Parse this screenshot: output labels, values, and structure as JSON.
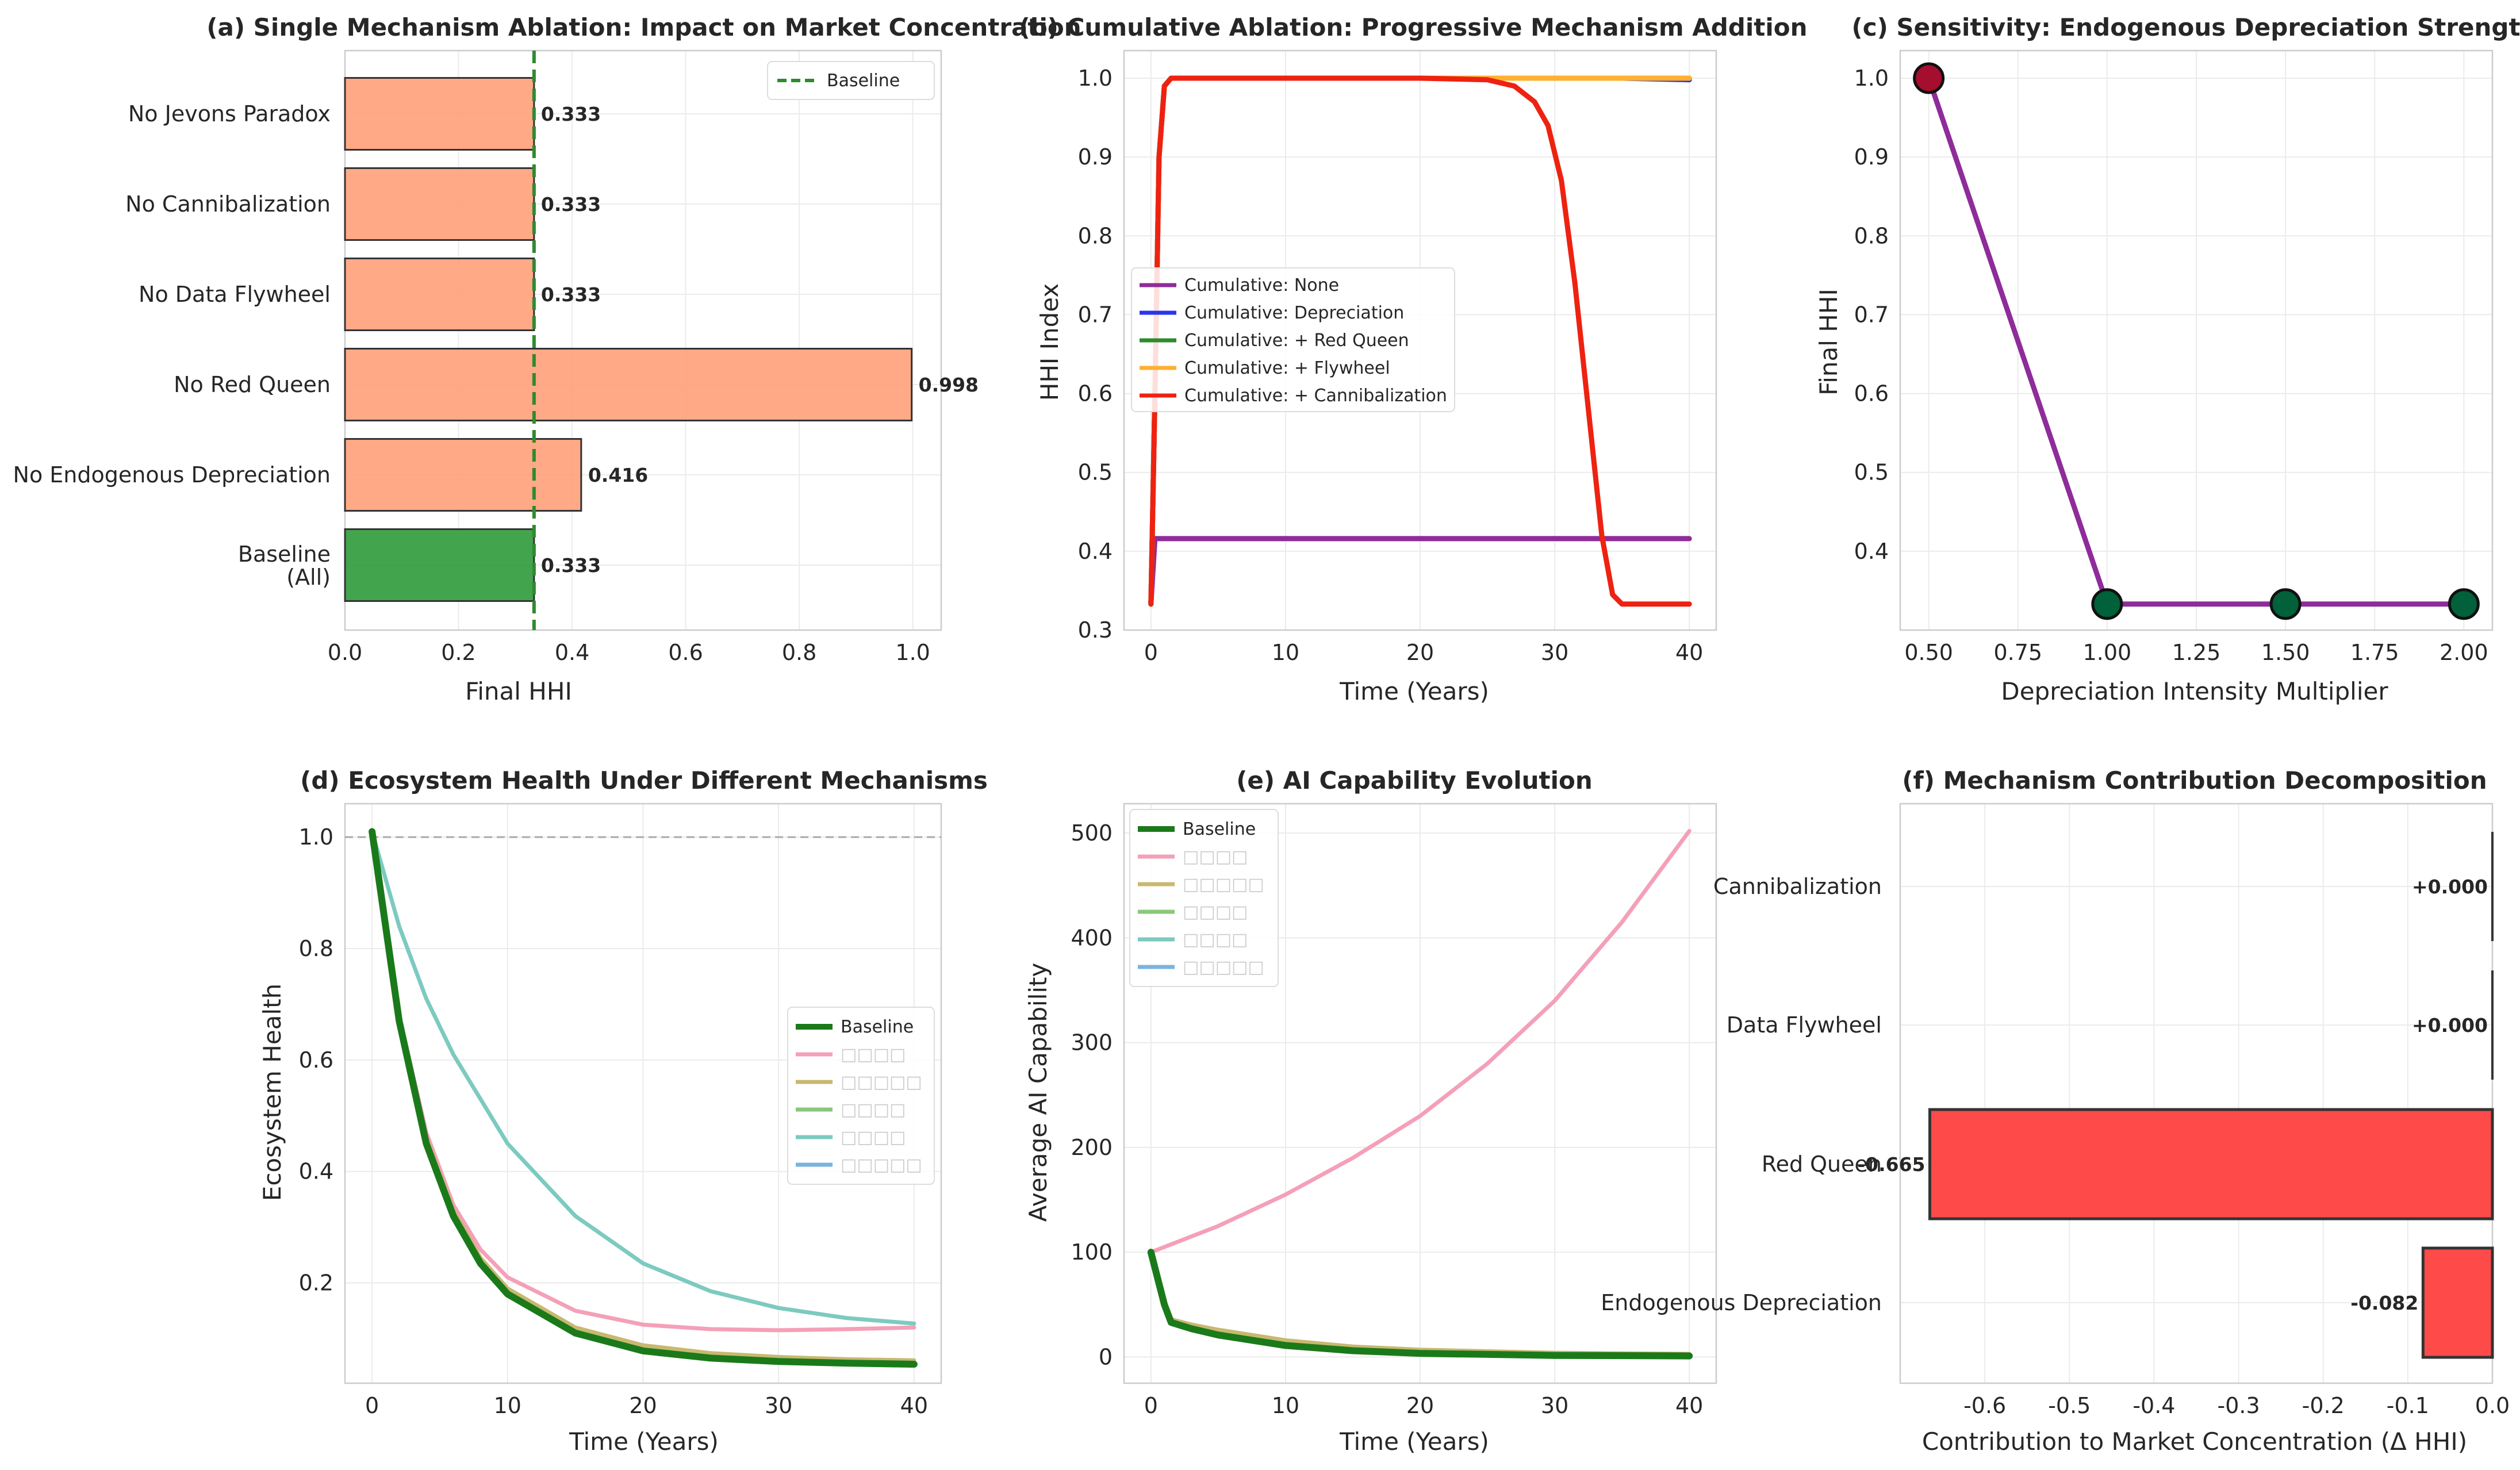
{
  "chart_data": [
    {
      "id": "a",
      "type": "bar",
      "orientation": "horizontal",
      "title": "(a) Single Mechanism Ablation: Impact on Market Concentration",
      "xlabel": "Final HHI",
      "ylabel": "",
      "xlim": [
        0,
        1.05
      ],
      "xticks": [
        "0.0",
        "0.2",
        "0.4",
        "0.6",
        "0.8",
        "1.0"
      ],
      "categories": [
        "Baseline\n(All)",
        "No Endogenous Depreciation",
        "No Red Queen",
        "No Data Flywheel",
        "No Cannibalization",
        "No Jevons Paradox"
      ],
      "values": [
        0.333,
        0.416,
        0.998,
        0.333,
        0.333,
        0.333
      ],
      "value_labels": [
        "0.333",
        "0.416",
        "0.998",
        "0.333",
        "0.333",
        "0.333"
      ],
      "bar_colors": [
        "#2e9a3a",
        "#ffa07a",
        "#ffa07a",
        "#ffa07a",
        "#ffa07a",
        "#ffa07a"
      ],
      "baseline_value": 0.333,
      "legend": [
        "Baseline"
      ],
      "legend_position": "top-right",
      "grid": true
    },
    {
      "id": "b",
      "type": "line",
      "title": "(b) Cumulative Ablation: Progressive Mechanism Addition",
      "xlabel": "Time (Years)",
      "ylabel": "HHI Index",
      "xlim": [
        -2,
        42
      ],
      "ylim": [
        0.3,
        1.035
      ],
      "xticks": [
        "0",
        "10",
        "20",
        "30",
        "40"
      ],
      "yticks": [
        "0.3",
        "0.4",
        "0.5",
        "0.6",
        "0.7",
        "0.8",
        "0.9",
        "1.0"
      ],
      "series": [
        {
          "name": "Cumulative: None",
          "color": "#8e2c9a",
          "x": [
            0,
            0.3,
            1,
            40
          ],
          "values": [
            0.333,
            0.416,
            0.416,
            0.416
          ]
        },
        {
          "name": "Cumulative: Depreciation",
          "color": "#2a35ee",
          "x": [
            0,
            0.3,
            0.6,
            1,
            1.5,
            5,
            20,
            35,
            40
          ],
          "values": [
            0.333,
            0.6,
            0.9,
            0.99,
            1.0,
            1.0,
            1.0,
            1.0,
            0.998
          ]
        },
        {
          "name": "Cumulative: + Red Queen",
          "color": "#2e8b2e",
          "x": [
            0,
            0.3,
            0.6,
            1,
            1.5,
            40
          ],
          "values": [
            0.333,
            0.6,
            0.9,
            0.99,
            1.0,
            1.0
          ]
        },
        {
          "name": "Cumulative: + Flywheel",
          "color": "#ffb030",
          "x": [
            0,
            0.3,
            0.6,
            1,
            1.5,
            40
          ],
          "values": [
            0.333,
            0.6,
            0.9,
            0.99,
            1.0,
            1.0
          ]
        },
        {
          "name": "Cumulative: + Cannibalization",
          "color": "#ee2211",
          "x": [
            0,
            0.3,
            0.6,
            1,
            1.5,
            20,
            25,
            27,
            28.5,
            29.5,
            30.5,
            31.5,
            32.5,
            33.5,
            34.3,
            35,
            40
          ],
          "values": [
            0.333,
            0.6,
            0.9,
            0.99,
            1.0,
            1.0,
            0.998,
            0.99,
            0.97,
            0.94,
            0.87,
            0.74,
            0.58,
            0.42,
            0.345,
            0.333,
            0.333
          ]
        }
      ],
      "legend_position": "center-left",
      "grid": true
    },
    {
      "id": "c",
      "type": "line",
      "title": "(c) Sensitivity: Endogenous Depreciation Strength",
      "xlabel": "Depreciation Intensity Multiplier",
      "ylabel": "Final HHI",
      "xlim": [
        0.42,
        2.08
      ],
      "ylim": [
        0.3,
        1.035
      ],
      "xticks": [
        "0.50",
        "0.75",
        "1.00",
        "1.25",
        "1.50",
        "1.75",
        "2.00"
      ],
      "yticks": [
        "0.4",
        "0.5",
        "0.6",
        "0.7",
        "0.8",
        "0.9",
        "1.0"
      ],
      "x": [
        0.5,
        1.0,
        1.5,
        2.0
      ],
      "values": [
        1.0,
        0.333,
        0.333,
        0.333
      ],
      "line_color": "#8e2c9a",
      "marker_colors": [
        "#a50e2e",
        "#00613a",
        "#00613a",
        "#00613a"
      ],
      "grid": true
    },
    {
      "id": "d",
      "type": "line",
      "title": "(d) Ecosystem Health Under Different Mechanisms",
      "xlabel": "Time (Years)",
      "ylabel": "Ecosystem Health",
      "xlim": [
        -2,
        42
      ],
      "ylim": [
        0.02,
        1.06
      ],
      "xticks": [
        "0",
        "10",
        "20",
        "30",
        "40"
      ],
      "yticks": [
        "0.2",
        "0.4",
        "0.6",
        "0.8",
        "1.0"
      ],
      "reference_line": 1.0,
      "series": [
        {
          "name": "Baseline",
          "color": "#1a7a1a",
          "x": [
            0,
            2,
            4,
            6,
            8,
            10,
            15,
            20,
            25,
            30,
            35,
            40
          ],
          "values": [
            1.01,
            0.67,
            0.45,
            0.32,
            0.235,
            0.18,
            0.11,
            0.078,
            0.065,
            0.059,
            0.056,
            0.054
          ]
        },
        {
          "name": "□□□□",
          "color": "#f4a0b8",
          "x": [
            0,
            2,
            4,
            6,
            8,
            10,
            15,
            20,
            25,
            30,
            35,
            40
          ],
          "values": [
            1.01,
            0.68,
            0.47,
            0.34,
            0.26,
            0.21,
            0.15,
            0.125,
            0.117,
            0.115,
            0.117,
            0.12
          ]
        },
        {
          "name": "□□□□□",
          "color": "#c8b870",
          "x": [
            0,
            2,
            4,
            6,
            8,
            10,
            15,
            20,
            25,
            30,
            35,
            40
          ],
          "values": [
            1.01,
            0.67,
            0.46,
            0.33,
            0.245,
            0.19,
            0.12,
            0.088,
            0.074,
            0.067,
            0.063,
            0.061
          ]
        },
        {
          "name": "□□□□",
          "color": "#88c87a",
          "x": [
            0,
            2,
            4,
            6,
            8,
            10,
            15,
            20,
            25,
            30,
            35,
            40
          ],
          "values": [
            1.01,
            0.67,
            0.45,
            0.32,
            0.237,
            0.182,
            0.112,
            0.08,
            0.067,
            0.06,
            0.057,
            0.055
          ]
        },
        {
          "name": "□□□□",
          "color": "#7ccac0",
          "x": [
            0,
            2,
            4,
            6,
            8,
            10,
            15,
            20,
            25,
            30,
            35,
            40
          ],
          "values": [
            1.01,
            0.84,
            0.71,
            0.61,
            0.53,
            0.45,
            0.32,
            0.235,
            0.185,
            0.155,
            0.137,
            0.127
          ]
        },
        {
          "name": "□□□□□",
          "color": "#7ab4de",
          "x": [
            0,
            2,
            4,
            6,
            8,
            10,
            15,
            20,
            25,
            30,
            35,
            40
          ],
          "values": [
            1.01,
            0.665,
            0.445,
            0.315,
            0.232,
            0.178,
            0.108,
            0.077,
            0.064,
            0.058,
            0.055,
            0.053
          ]
        }
      ],
      "legend_position": "center-right",
      "grid": true
    },
    {
      "id": "e",
      "type": "line",
      "title": "(e) AI Capability Evolution",
      "xlabel": "Time (Years)",
      "ylabel": "Average AI Capability",
      "xlim": [
        -2,
        42
      ],
      "ylim": [
        -25,
        528
      ],
      "xticks": [
        "0",
        "10",
        "20",
        "30",
        "40"
      ],
      "yticks": [
        "0",
        "100",
        "200",
        "300",
        "400",
        "500"
      ],
      "series": [
        {
          "name": "Baseline",
          "color": "#1a7a1a",
          "x": [
            0,
            0.5,
            1,
            1.5,
            3,
            5,
            10,
            15,
            20,
            30,
            40
          ],
          "values": [
            100,
            75,
            50,
            33,
            27,
            21,
            11,
            6,
            3.5,
            1.5,
            1
          ]
        },
        {
          "name": "□□□□",
          "color": "#f4a0b8",
          "x": [
            0,
            5,
            10,
            15,
            20,
            25,
            30,
            35,
            40
          ],
          "values": [
            100,
            125,
            155,
            190,
            230,
            280,
            340,
            415,
            502
          ]
        },
        {
          "name": "□□□□□",
          "color": "#c8b870",
          "x": [
            0,
            0.5,
            1,
            1.5,
            3,
            5,
            10,
            15,
            20,
            30,
            40
          ],
          "values": [
            100,
            77,
            53,
            36,
            31,
            26,
            16,
            10,
            7,
            4,
            3
          ]
        },
        {
          "name": "□□□□",
          "color": "#88c87a",
          "x": [
            0,
            0.5,
            1,
            1.5,
            3,
            5,
            10,
            15,
            20,
            30,
            40
          ],
          "values": [
            100,
            75,
            50,
            33,
            27,
            21,
            11,
            6,
            3.5,
            1.5,
            1
          ]
        },
        {
          "name": "□□□□",
          "color": "#7ccac0",
          "x": [
            0,
            0.5,
            1,
            1.5,
            3,
            5,
            10,
            15,
            20,
            30,
            40
          ],
          "values": [
            100,
            75,
            50,
            33,
            27,
            21,
            11,
            6,
            3.5,
            1.5,
            1
          ]
        },
        {
          "name": "□□□□□",
          "color": "#7ab4de",
          "x": [
            0,
            0.5,
            1,
            1.5,
            3,
            5,
            10,
            15,
            20,
            30,
            40
          ],
          "values": [
            100,
            75,
            50,
            33,
            27,
            21,
            11,
            6,
            3.5,
            1.5,
            1
          ]
        }
      ],
      "legend_position": "top-left",
      "grid": true
    },
    {
      "id": "f",
      "type": "bar",
      "orientation": "horizontal",
      "title": "(f) Mechanism Contribution Decomposition",
      "xlabel": "Contribution to Market Concentration (Δ HHI)",
      "ylabel": "",
      "xlim": [
        -0.7,
        0.0
      ],
      "xticks": [
        "-0.6",
        "-0.5",
        "-0.4",
        "-0.3",
        "-0.2",
        "-0.1",
        "0.0"
      ],
      "categories": [
        "Endogenous Depreciation",
        "Red Queen",
        "Data Flywheel",
        "Cannibalization"
      ],
      "values": [
        -0.082,
        -0.665,
        0.0,
        0.0
      ],
      "value_labels": [
        "-0.082",
        "-0.665",
        "+0.000",
        "+0.000"
      ],
      "bar_color": "#ff4040",
      "grid": true
    }
  ]
}
